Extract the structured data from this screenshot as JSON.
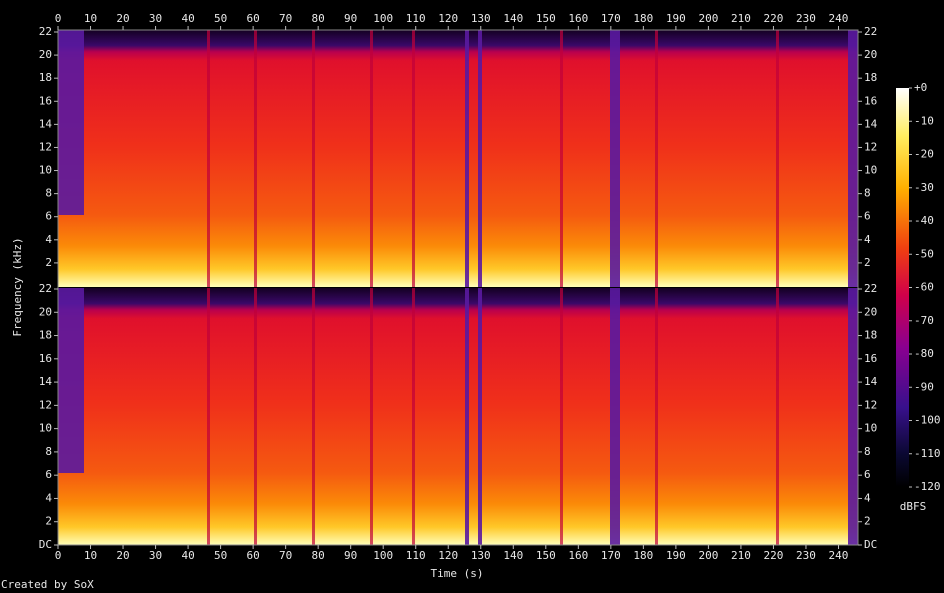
{
  "chart_data": {
    "type": "spectrogram",
    "xlabel": "Time (s)",
    "ylabel": "Frequency (kHz)",
    "footer": "Created by SoX",
    "colorbar_label": "dBFS",
    "xlim": [
      0,
      246
    ],
    "xticks": [
      0,
      10,
      20,
      30,
      40,
      50,
      60,
      70,
      80,
      90,
      100,
      110,
      120,
      130,
      140,
      150,
      160,
      170,
      180,
      190,
      200,
      210,
      220,
      230,
      240
    ],
    "channels": [
      {
        "ylim": [
          0,
          22
        ],
        "yticks": [
          2,
          4,
          6,
          8,
          10,
          12,
          14,
          16,
          18,
          20,
          22
        ]
      },
      {
        "ylim": [
          0,
          22
        ],
        "yticks": [
          {
            "value": 0,
            "label": "DC"
          },
          2,
          4,
          6,
          8,
          10,
          12,
          14,
          16,
          18,
          20,
          22
        ]
      }
    ],
    "zlim": [
      -120,
      0
    ],
    "zticks": [
      {
        "value": 0,
        "label": "+0"
      },
      -10,
      -20,
      -30,
      -40,
      -50,
      -60,
      -70,
      -80,
      -90,
      -100,
      -110,
      -120
    ]
  }
}
